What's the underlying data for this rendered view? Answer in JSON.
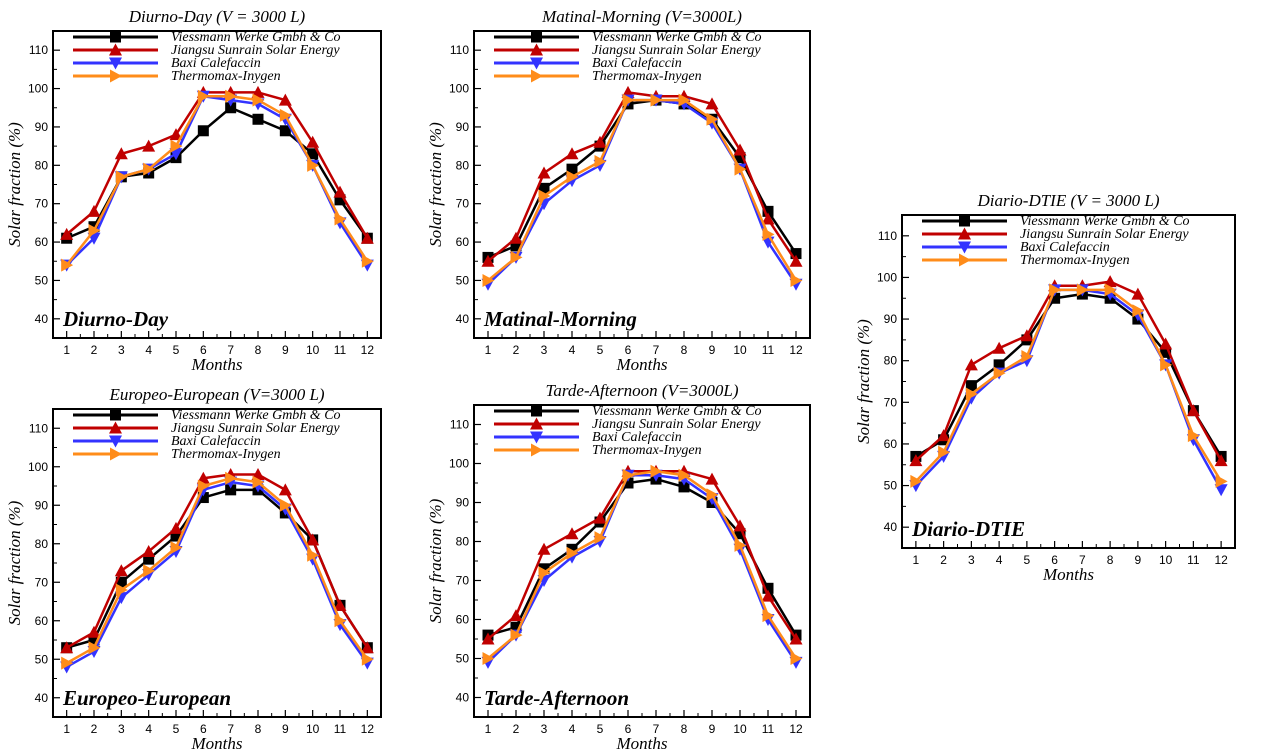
{
  "chart_data": [
    {
      "type": "line",
      "title": "Diurno-Day (V = 3000 L)",
      "inner_label": "Diurno-Day",
      "xlabel": "Months",
      "ylabel": "Solar fraction (%)",
      "x": [
        1,
        2,
        3,
        4,
        5,
        6,
        7,
        8,
        9,
        10,
        11,
        12
      ],
      "ylim": [
        35,
        115
      ],
      "yticks": [
        40,
        50,
        60,
        70,
        80,
        90,
        100,
        110
      ],
      "legend_position": "top",
      "series": [
        {
          "name": "Viessmann Werke Gmbh & Co",
          "color": "#000000",
          "marker": "square",
          "values": [
            61,
            64,
            77,
            78,
            82,
            89,
            95,
            92,
            89,
            83,
            71,
            61
          ]
        },
        {
          "name": "Jiangsu Sunrain Solar Energy",
          "color": "#c00000",
          "marker": "triangle-up",
          "values": [
            62,
            68,
            83,
            85,
            88,
            99,
            99,
            99,
            97,
            86,
            73,
            61
          ]
        },
        {
          "name": "Baxi Calefaccin",
          "color": "#3333ff",
          "marker": "triangle-down",
          "values": [
            54,
            61,
            77,
            79,
            83,
            98,
            97,
            96,
            92,
            80,
            65,
            54
          ]
        },
        {
          "name": "Thermomax-Inygen",
          "color": "#ff8c1a",
          "marker": "triangle-right",
          "values": [
            54,
            63,
            77,
            79,
            85,
            98,
            98,
            97,
            93,
            80,
            66,
            55
          ]
        }
      ]
    },
    {
      "type": "line",
      "title": "Matinal-Morning (V=3000L)",
      "inner_label": "Matinal-Morning",
      "xlabel": "Months",
      "ylabel": "Solar fraction (%)",
      "x": [
        1,
        2,
        3,
        4,
        5,
        6,
        7,
        8,
        9,
        10,
        11,
        12
      ],
      "ylim": [
        35,
        115
      ],
      "yticks": [
        40,
        50,
        60,
        70,
        80,
        90,
        100,
        110
      ],
      "legend_position": "top",
      "series": [
        {
          "name": "Viessmann Werke Gmbh & Co",
          "color": "#000000",
          "marker": "square",
          "values": [
            56,
            59,
            74,
            79,
            85,
            96,
            97,
            96,
            92,
            82,
            68,
            57
          ]
        },
        {
          "name": "Jiangsu Sunrain Solar Energy",
          "color": "#c00000",
          "marker": "triangle-up",
          "values": [
            55,
            61,
            78,
            83,
            86,
            99,
            98,
            98,
            96,
            84,
            66,
            55
          ]
        },
        {
          "name": "Baxi Calefaccin",
          "color": "#3333ff",
          "marker": "triangle-down",
          "values": [
            49,
            56,
            70,
            76,
            80,
            97,
            97,
            96,
            91,
            79,
            60,
            49
          ]
        },
        {
          "name": "Thermomax-Inygen",
          "color": "#ff8c1a",
          "marker": "triangle-right",
          "values": [
            50,
            56,
            72,
            77,
            81,
            97,
            97,
            97,
            92,
            79,
            62,
            50
          ]
        }
      ]
    },
    {
      "type": "line",
      "title": "Diario-DTIE (V = 3000 L)",
      "inner_label": "Diario-DTIE",
      "xlabel": "Months",
      "ylabel": "Solar fraction (%)",
      "x": [
        1,
        2,
        3,
        4,
        5,
        6,
        7,
        8,
        9,
        10,
        11,
        12
      ],
      "ylim": [
        35,
        115
      ],
      "yticks": [
        40,
        50,
        60,
        70,
        80,
        90,
        100,
        110
      ],
      "legend_position": "top",
      "series": [
        {
          "name": "Viessmann Werke Gmbh & Co",
          "color": "#000000",
          "marker": "square",
          "values": [
            57,
            61,
            74,
            79,
            85,
            95,
            96,
            95,
            90,
            82,
            68,
            57
          ]
        },
        {
          "name": "Jiangsu Sunrain Solar Energy",
          "color": "#c00000",
          "marker": "triangle-up",
          "values": [
            56,
            62,
            79,
            83,
            86,
            98,
            98,
            99,
            96,
            84,
            68,
            56
          ]
        },
        {
          "name": "Baxi Calefaccin",
          "color": "#3333ff",
          "marker": "triangle-down",
          "values": [
            50,
            57,
            71,
            77,
            80,
            97,
            97,
            96,
            91,
            79,
            61,
            49
          ]
        },
        {
          "name": "Thermomax-Inygen",
          "color": "#ff8c1a",
          "marker": "triangle-right",
          "values": [
            51,
            58,
            72,
            77,
            81,
            97,
            97,
            97,
            92,
            79,
            62,
            51
          ]
        }
      ]
    },
    {
      "type": "line",
      "title": "Europeo-European (V=3000 L)",
      "inner_label": "Europeo-European",
      "xlabel": "Months",
      "ylabel": "Solar fraction (%)",
      "x": [
        1,
        2,
        3,
        4,
        5,
        6,
        7,
        8,
        9,
        10,
        11,
        12
      ],
      "ylim": [
        35,
        115
      ],
      "yticks": [
        40,
        50,
        60,
        70,
        80,
        90,
        100,
        110
      ],
      "legend_position": "top",
      "series": [
        {
          "name": "Viessmann Werke Gmbh & Co",
          "color": "#000000",
          "marker": "square",
          "values": [
            53,
            55,
            70,
            76,
            82,
            92,
            94,
            94,
            88,
            81,
            64,
            53
          ]
        },
        {
          "name": "Jiangsu Sunrain Solar Energy",
          "color": "#c00000",
          "marker": "triangle-up",
          "values": [
            53,
            57,
            73,
            78,
            84,
            97,
            98,
            98,
            94,
            81,
            64,
            53
          ]
        },
        {
          "name": "Baxi Calefaccin",
          "color": "#3333ff",
          "marker": "triangle-down",
          "values": [
            48,
            52,
            66,
            72,
            78,
            94,
            96,
            95,
            89,
            76,
            59,
            49
          ]
        },
        {
          "name": "Thermomax-Inygen",
          "color": "#ff8c1a",
          "marker": "triangle-right",
          "values": [
            49,
            53,
            68,
            73,
            79,
            95,
            97,
            96,
            90,
            77,
            60,
            50
          ]
        }
      ]
    },
    {
      "type": "line",
      "title": "Tarde-Afternoon (V=3000L)",
      "inner_label": "Tarde-Afternoon",
      "xlabel": "Months",
      "ylabel": "Solar fraction (%)",
      "x": [
        1,
        2,
        3,
        4,
        5,
        6,
        7,
        8,
        9,
        10,
        11,
        12
      ],
      "ylim": [
        35,
        115
      ],
      "yticks": [
        40,
        50,
        60,
        70,
        80,
        90,
        100,
        110
      ],
      "legend_position": "top",
      "series": [
        {
          "name": "Viessmann Werke Gmbh & Co",
          "color": "#000000",
          "marker": "square",
          "values": [
            56,
            58,
            73,
            78,
            85,
            95,
            96,
            94,
            90,
            82,
            68,
            56
          ]
        },
        {
          "name": "Jiangsu Sunrain Solar Energy",
          "color": "#c00000",
          "marker": "triangle-up",
          "values": [
            55,
            61,
            78,
            82,
            86,
            98,
            98,
            98,
            96,
            84,
            66,
            55
          ]
        },
        {
          "name": "Baxi Calefaccin",
          "color": "#3333ff",
          "marker": "triangle-down",
          "values": [
            49,
            56,
            70,
            76,
            80,
            97,
            97,
            96,
            91,
            78,
            60,
            49
          ]
        },
        {
          "name": "Thermomax-Inygen",
          "color": "#ff8c1a",
          "marker": "triangle-right",
          "values": [
            50,
            56,
            72,
            77,
            81,
            97,
            98,
            97,
            92,
            79,
            61,
            50
          ]
        }
      ]
    }
  ]
}
